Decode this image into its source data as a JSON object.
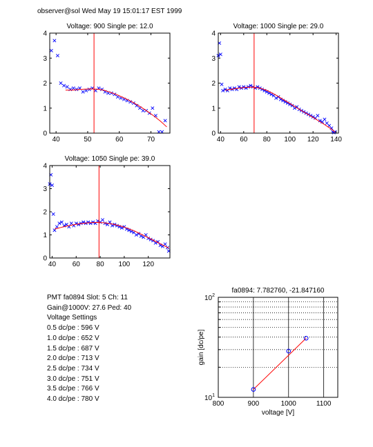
{
  "header": "observer@sol  Wed May 19 15:01:17 EST 1999",
  "info_lines": [
    "PMT fa0894 Slot: 5 Ch: 11",
    "Gain@1000V: 27.6 Ped: 40",
    "Voltage Settings",
    "0.5 dc/pe : 596 V",
    "1.0 dc/pe : 652 V",
    "1.5 dc/pe : 687 V",
    "2.0 dc/pe : 713 V",
    "2.5 dc/pe : 734 V",
    "3.0 dc/pe : 751 V",
    "3.5 dc/pe : 766 V",
    "4.0 dc/pe : 780 V"
  ],
  "colors": {
    "data": "#0000ff",
    "fit": "#ff0000",
    "axes": "#000000"
  },
  "chart_data": [
    {
      "type": "scatter",
      "title": "Voltage: 900  Single pe: 12.0",
      "xlim": [
        38,
        76
      ],
      "ylim": [
        0,
        4
      ],
      "xticks": [
        40,
        50,
        60,
        70
      ],
      "yticks": [
        0,
        1,
        2,
        3,
        4
      ],
      "marker": "x",
      "vline": 52,
      "points": [
        [
          38.5,
          3.3
        ],
        [
          39.5,
          3.7
        ],
        [
          40.5,
          3.1
        ],
        [
          41.5,
          2.0
        ],
        [
          42.5,
          1.9
        ],
        [
          43.5,
          1.85
        ],
        [
          44.5,
          1.75
        ],
        [
          45.5,
          1.8
        ],
        [
          46.5,
          1.75
        ],
        [
          47.5,
          1.8
        ],
        [
          48.5,
          1.65
        ],
        [
          49.5,
          1.7
        ],
        [
          50.5,
          1.75
        ],
        [
          51.5,
          1.8
        ],
        [
          52.5,
          1.7
        ],
        [
          53.5,
          1.8
        ],
        [
          54.5,
          1.75
        ],
        [
          55.5,
          1.65
        ],
        [
          56.5,
          1.6
        ],
        [
          57.5,
          1.6
        ],
        [
          58.5,
          1.55
        ],
        [
          59.5,
          1.45
        ],
        [
          60.5,
          1.4
        ],
        [
          61.5,
          1.35
        ],
        [
          62.5,
          1.3
        ],
        [
          63.5,
          1.25
        ],
        [
          64.5,
          1.2
        ],
        [
          65.5,
          1.1
        ],
        [
          66.5,
          1.0
        ],
        [
          67.5,
          0.9
        ],
        [
          68.5,
          0.9
        ],
        [
          69.5,
          0.8
        ],
        [
          70.5,
          1.0
        ],
        [
          71.5,
          0.7
        ],
        [
          72.5,
          0.05
        ],
        [
          73.5,
          0.05
        ],
        [
          74.5,
          0.5
        ]
      ],
      "fit": [
        [
          43,
          1.72
        ],
        [
          45,
          1.72
        ],
        [
          47,
          1.74
        ],
        [
          49,
          1.76
        ],
        [
          51,
          1.77
        ],
        [
          53,
          1.76
        ],
        [
          55,
          1.72
        ],
        [
          57,
          1.64
        ],
        [
          59,
          1.55
        ],
        [
          61,
          1.44
        ],
        [
          63,
          1.32
        ],
        [
          65,
          1.18
        ],
        [
          67,
          1.03
        ],
        [
          69,
          0.86
        ],
        [
          71,
          0.68
        ],
        [
          73,
          0.48
        ],
        [
          75,
          0.25
        ]
      ]
    },
    {
      "type": "scatter",
      "title": "Voltage: 1000  Single pe: 29.0",
      "xlim": [
        38,
        142
      ],
      "ylim": [
        0,
        4
      ],
      "xticks": [
        40,
        60,
        80,
        100,
        120,
        140
      ],
      "yticks": [
        0,
        1,
        2,
        3,
        4
      ],
      "marker": "x",
      "vline": 69,
      "points": [
        [
          38,
          3.1
        ],
        [
          39,
          3.6
        ],
        [
          40,
          3.15
        ],
        [
          41,
          1.95
        ],
        [
          42,
          1.7
        ],
        [
          44,
          1.75
        ],
        [
          46,
          1.7
        ],
        [
          48,
          1.8
        ],
        [
          50,
          1.75
        ],
        [
          52,
          1.8
        ],
        [
          54,
          1.75
        ],
        [
          56,
          1.85
        ],
        [
          58,
          1.8
        ],
        [
          60,
          1.85
        ],
        [
          62,
          1.8
        ],
        [
          64,
          1.85
        ],
        [
          66,
          1.9
        ],
        [
          68,
          1.85
        ],
        [
          70,
          1.8
        ],
        [
          72,
          1.85
        ],
        [
          74,
          1.8
        ],
        [
          76,
          1.75
        ],
        [
          78,
          1.7
        ],
        [
          80,
          1.65
        ],
        [
          82,
          1.6
        ],
        [
          84,
          1.55
        ],
        [
          86,
          1.5
        ],
        [
          88,
          1.4
        ],
        [
          90,
          1.45
        ],
        [
          92,
          1.35
        ],
        [
          94,
          1.3
        ],
        [
          96,
          1.25
        ],
        [
          98,
          1.2
        ],
        [
          100,
          1.15
        ],
        [
          102,
          1.1
        ],
        [
          104,
          1.0
        ],
        [
          106,
          1.05
        ],
        [
          108,
          0.95
        ],
        [
          110,
          0.9
        ],
        [
          112,
          0.85
        ],
        [
          114,
          0.8
        ],
        [
          116,
          0.75
        ],
        [
          118,
          0.7
        ],
        [
          120,
          0.65
        ],
        [
          122,
          0.6
        ],
        [
          124,
          0.7
        ],
        [
          126,
          0.5
        ],
        [
          128,
          0.45
        ],
        [
          130,
          0.55
        ],
        [
          132,
          0.4
        ],
        [
          134,
          0.3
        ],
        [
          136,
          0.2
        ],
        [
          137,
          0.05
        ],
        [
          138,
          0.02
        ],
        [
          139,
          0.05
        ]
      ],
      "fit": [
        [
          44,
          1.72
        ],
        [
          50,
          1.76
        ],
        [
          56,
          1.8
        ],
        [
          62,
          1.83
        ],
        [
          68,
          1.84
        ],
        [
          74,
          1.8
        ],
        [
          80,
          1.71
        ],
        [
          86,
          1.57
        ],
        [
          92,
          1.41
        ],
        [
          98,
          1.24
        ],
        [
          104,
          1.07
        ],
        [
          110,
          0.9
        ],
        [
          116,
          0.74
        ],
        [
          122,
          0.57
        ],
        [
          128,
          0.4
        ],
        [
          134,
          0.22
        ],
        [
          139,
          0.05
        ]
      ]
    },
    {
      "type": "scatter",
      "title": "Voltage: 1050  Single pe: 39.0",
      "xlim": [
        38,
        138
      ],
      "ylim": [
        0,
        4
      ],
      "xticks": [
        40,
        60,
        80,
        100,
        120
      ],
      "yticks": [
        0,
        1,
        2,
        3,
        4
      ],
      "marker": "x",
      "vline": 79,
      "points": [
        [
          38,
          3.2
        ],
        [
          39,
          3.6
        ],
        [
          40,
          3.15
        ],
        [
          41,
          1.9
        ],
        [
          42,
          1.2
        ],
        [
          44,
          1.35
        ],
        [
          46,
          1.5
        ],
        [
          48,
          1.55
        ],
        [
          50,
          1.4
        ],
        [
          52,
          1.45
        ],
        [
          54,
          1.35
        ],
        [
          56,
          1.5
        ],
        [
          58,
          1.4
        ],
        [
          60,
          1.5
        ],
        [
          62,
          1.45
        ],
        [
          64,
          1.5
        ],
        [
          66,
          1.55
        ],
        [
          68,
          1.5
        ],
        [
          70,
          1.55
        ],
        [
          72,
          1.5
        ],
        [
          74,
          1.55
        ],
        [
          76,
          1.5
        ],
        [
          78,
          1.6
        ],
        [
          80,
          1.55
        ],
        [
          82,
          1.65
        ],
        [
          84,
          1.5
        ],
        [
          86,
          1.45
        ],
        [
          88,
          1.55
        ],
        [
          90,
          1.4
        ],
        [
          92,
          1.45
        ],
        [
          94,
          1.4
        ],
        [
          96,
          1.35
        ],
        [
          98,
          1.3
        ],
        [
          100,
          1.35
        ],
        [
          102,
          1.25
        ],
        [
          104,
          1.2
        ],
        [
          106,
          1.15
        ],
        [
          108,
          1.1
        ],
        [
          110,
          1.0
        ],
        [
          112,
          1.05
        ],
        [
          114,
          0.95
        ],
        [
          116,
          0.9
        ],
        [
          118,
          1.0
        ],
        [
          120,
          0.85
        ],
        [
          122,
          0.8
        ],
        [
          124,
          0.75
        ],
        [
          126,
          0.65
        ],
        [
          128,
          0.7
        ],
        [
          130,
          0.55
        ],
        [
          132,
          0.5
        ],
        [
          134,
          0.6
        ],
        [
          136,
          0.45
        ],
        [
          137,
          0.3
        ]
      ],
      "fit": [
        [
          42,
          1.25
        ],
        [
          48,
          1.33
        ],
        [
          54,
          1.4
        ],
        [
          60,
          1.46
        ],
        [
          66,
          1.5
        ],
        [
          72,
          1.53
        ],
        [
          78,
          1.54
        ],
        [
          84,
          1.52
        ],
        [
          90,
          1.47
        ],
        [
          96,
          1.4
        ],
        [
          102,
          1.3
        ],
        [
          108,
          1.18
        ],
        [
          114,
          1.03
        ],
        [
          120,
          0.88
        ],
        [
          126,
          0.72
        ],
        [
          132,
          0.56
        ],
        [
          137,
          0.43
        ]
      ]
    },
    {
      "type": "line",
      "title": "fa0894: 7.782760, -21.847160",
      "xlabel": "voltage [V]",
      "ylabel": "gain [dc/pe]",
      "xlim": [
        800,
        1140
      ],
      "xticks": [
        800,
        900,
        1000,
        1100
      ],
      "yscale": "log",
      "ylim": [
        10,
        100
      ],
      "ytick_labels": [
        {
          "value": 10,
          "base": "10",
          "exp": "1"
        },
        {
          "value": 100,
          "base": "10",
          "exp": "2"
        }
      ],
      "grid": "dotted",
      "marker": "o",
      "points": [
        [
          900,
          12.0
        ],
        [
          1000,
          29.0
        ],
        [
          1050,
          39.0
        ]
      ],
      "fit_line": [
        [
          900,
          12.0
        ],
        [
          1050,
          39.0
        ]
      ]
    }
  ]
}
